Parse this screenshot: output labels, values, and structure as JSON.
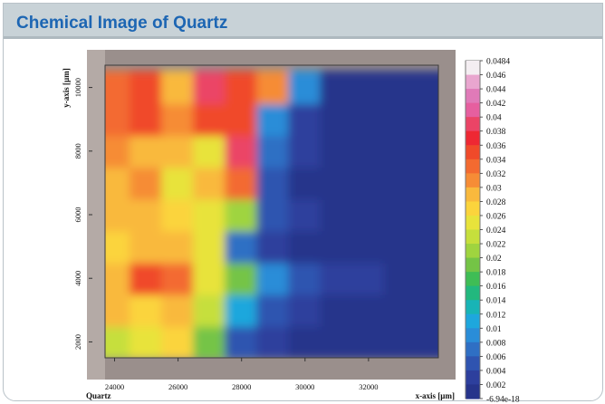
{
  "header": {
    "title": "Chemical Image of Quartz"
  },
  "chart_data": {
    "type": "heatmap",
    "title": "",
    "xlabel": "x-axis [µm]",
    "ylabel": "y-axis [µm]",
    "sample_label": "Quartz",
    "xlim": [
      23700,
      34200
    ],
    "ylim": [
      1500,
      10700
    ],
    "x": [
      24000,
      25000,
      26000,
      27000,
      28000,
      29000,
      30000,
      31000,
      32000,
      33000,
      34000
    ],
    "y": [
      2000,
      3000,
      4000,
      5000,
      6000,
      7000,
      8000,
      9000,
      10000
    ],
    "x_ticks": [
      "24000",
      "26000",
      "28000",
      "30000",
      "32000"
    ],
    "y_ticks": [
      "2000",
      "4000",
      "6000",
      "8000",
      "10000"
    ],
    "z": [
      [
        0.025,
        0.027,
        0.028,
        0.02,
        0.006,
        0.004,
        0.003,
        0.003,
        0.003,
        0.003,
        0.003
      ],
      [
        0.03,
        0.028,
        0.03,
        0.024,
        0.012,
        0.006,
        0.004,
        0.003,
        0.003,
        0.003,
        0.003
      ],
      [
        0.03,
        0.036,
        0.034,
        0.027,
        0.02,
        0.01,
        0.006,
        0.004,
        0.004,
        0.003,
        0.003
      ],
      [
        0.028,
        0.03,
        0.031,
        0.027,
        0.008,
        0.004,
        0.003,
        0.003,
        0.003,
        0.003,
        0.003
      ],
      [
        0.03,
        0.03,
        0.028,
        0.026,
        0.022,
        0.006,
        0.004,
        0.003,
        0.003,
        0.003,
        0.003
      ],
      [
        0.03,
        0.032,
        0.026,
        0.03,
        0.034,
        0.006,
        0.003,
        0.003,
        0.003,
        0.003,
        0.003
      ],
      [
        0.032,
        0.03,
        0.031,
        0.026,
        0.04,
        0.008,
        0.004,
        0.003,
        0.003,
        0.003,
        0.003
      ],
      [
        0.034,
        0.036,
        0.032,
        0.036,
        0.036,
        0.01,
        0.004,
        0.003,
        0.003,
        0.003,
        0.003
      ],
      [
        0.034,
        0.036,
        0.03,
        0.04,
        0.036,
        0.032,
        0.01,
        0.003,
        0.003,
        0.003,
        0.003
      ]
    ],
    "colorbar": {
      "min": -6.94e-18,
      "max": 0.0484,
      "labels": [
        "0.0484",
        "0.046",
        "0.044",
        "0.042",
        "0.04",
        "0.038",
        "0.036",
        "0.034",
        "0.032",
        "0.03",
        "0.028",
        "0.026",
        "0.024",
        "0.022",
        "0.02",
        "0.018",
        "0.016",
        "0.014",
        "0.012",
        "0.01",
        "0.008",
        "0.006",
        "0.004",
        "0.002",
        "-6.94e-18"
      ],
      "colors": [
        "#f4eef2",
        "#e9a6cf",
        "#e07ab8",
        "#e65f9f",
        "#eb4466",
        "#ee2833",
        "#f04a2a",
        "#f36a30",
        "#f68c36",
        "#f9b93d",
        "#fbd43c",
        "#e8e33b",
        "#c6df3c",
        "#9fd43f",
        "#74c446",
        "#3fbd55",
        "#22b87e",
        "#18b4b6",
        "#1ea7dd",
        "#2a8dd8",
        "#2f6fc4",
        "#2f54b0",
        "#2d3f9d",
        "#26348b",
        "#1f2a7a"
      ]
    }
  }
}
